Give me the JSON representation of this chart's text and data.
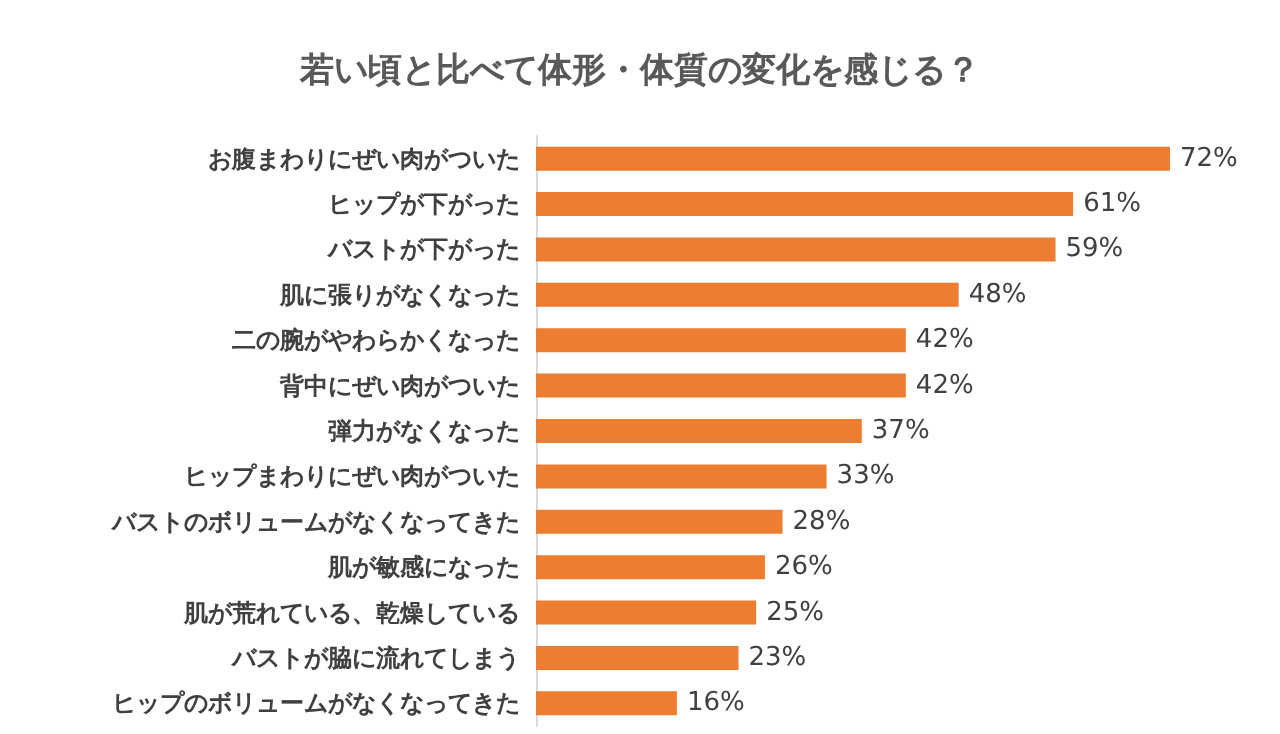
{
  "chart_data": {
    "type": "bar",
    "orientation": "horizontal",
    "title": "若い頃と比べて体形・体質の変化を感じる？",
    "categories": [
      "お腹まわりにぜい肉がついた",
      "ヒップが下がった",
      "バストが下がった",
      "肌に張りがなくなった",
      "二の腕がやわらかくなった",
      "背中にぜい肉がついた",
      "弾力がなくなった",
      "ヒップまわりにぜい肉がついた",
      "バストのボリュームがなくなってきた",
      "肌が敏感になった",
      "肌が荒れている、乾燥している",
      "バストが脇に流れてしまう",
      "ヒップのボリュームがなくなってきた"
    ],
    "values": [
      72,
      61,
      59,
      48,
      42,
      42,
      37,
      33,
      28,
      26,
      25,
      23,
      16
    ],
    "value_labels": [
      "72%",
      "61%",
      "59%",
      "48%",
      "42%",
      "42%",
      "37%",
      "33%",
      "28%",
      "26%",
      "25%",
      "23%",
      "16%"
    ],
    "color": "#ed7d31"
  }
}
